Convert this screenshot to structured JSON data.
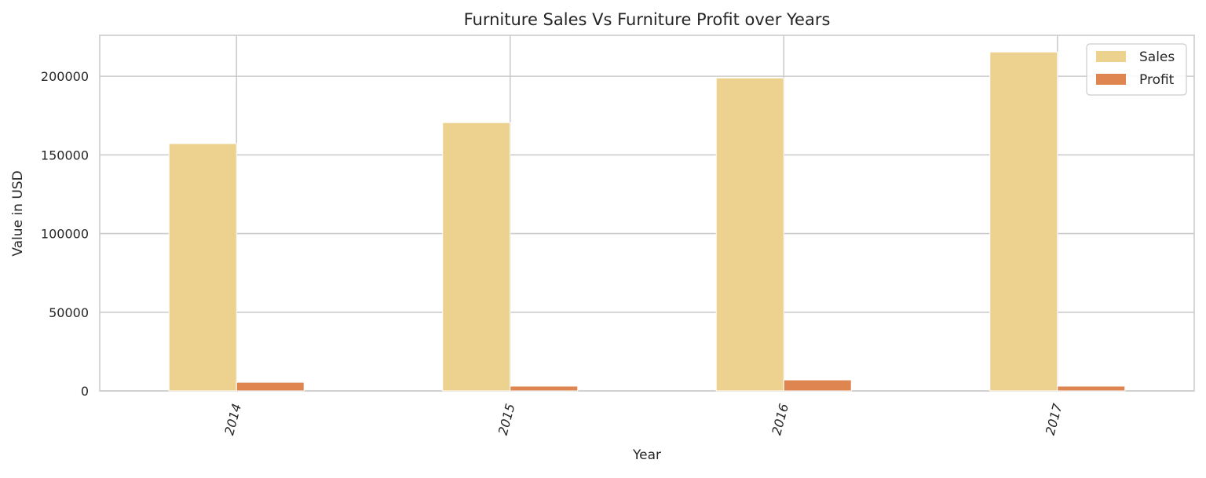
{
  "chart_data": {
    "type": "bar",
    "title": "Furniture Sales Vs Furniture Profit over Years",
    "xlabel": "Year",
    "ylabel": "Value in USD",
    "categories": [
      "2014",
      "2015",
      "2016",
      "2017"
    ],
    "series": [
      {
        "name": "Sales",
        "color": "#EDD18F",
        "values": [
          157193,
          170518,
          198901,
          215387
        ]
      },
      {
        "name": "Profit",
        "color": "#DE8550",
        "values": [
          5458,
          3015,
          6960,
          3018
        ]
      }
    ],
    "ylim": [
      0,
      226000
    ],
    "yticks": [
      0,
      50000,
      100000,
      150000,
      200000
    ],
    "ytick_labels": [
      "0",
      "50000",
      "100000",
      "150000",
      "200000"
    ],
    "grid": true,
    "legend": "top-right",
    "xtick_rotation_deg": 75
  }
}
